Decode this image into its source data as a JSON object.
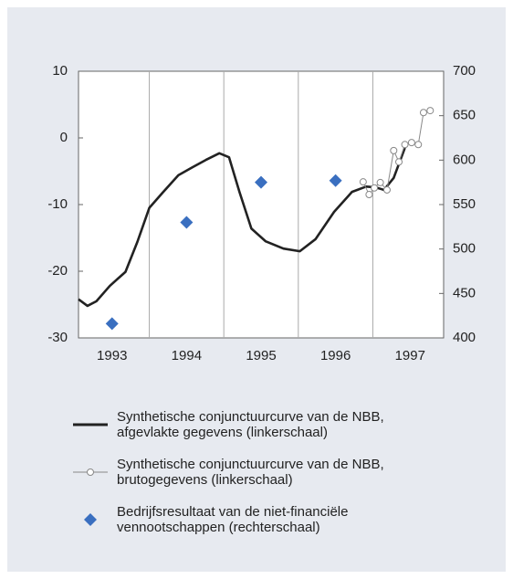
{
  "chart_data": {
    "type": "line",
    "xlim": [
      1993.05,
      1997.95
    ],
    "xticks": [
      {
        "value": 1993.5,
        "label": "1993"
      },
      {
        "value": 1994.5,
        "label": "1994"
      },
      {
        "value": 1995.5,
        "label": "1995"
      },
      {
        "value": 1996.5,
        "label": "1996"
      },
      {
        "value": 1997.5,
        "label": "1997"
      }
    ],
    "xgrid": [
      1994,
      1995,
      1996,
      1997
    ],
    "ylim": [
      -30,
      10
    ],
    "yticks": [
      10,
      0,
      -10,
      -20,
      -30
    ],
    "y2lim": [
      400,
      700
    ],
    "y2ticks": [
      700,
      650,
      600,
      550,
      500,
      450,
      400
    ],
    "series": [
      {
        "name": "Synthetische conjunctuurcurve van de NBB,\nafgevlakte gegevens (linkerschaal)",
        "color": "#222222",
        "style": "thick",
        "x": [
          1993.05,
          1993.17,
          1993.29,
          1993.47,
          1993.68,
          1993.84,
          1994.0,
          1994.18,
          1994.39,
          1994.58,
          1994.76,
          1994.94,
          1995.07,
          1995.21,
          1995.37,
          1995.56,
          1995.8,
          1996.02,
          1996.23,
          1996.48,
          1996.72,
          1996.91,
          1997.03,
          1997.15,
          1997.28,
          1997.43
        ],
        "values": [
          -24.2,
          -25.2,
          -24.5,
          -22.2,
          -20.1,
          -15.6,
          -10.5,
          -8.2,
          -5.6,
          -4.4,
          -3.3,
          -2.3,
          -2.9,
          -8.1,
          -13.6,
          -15.5,
          -16.6,
          -17.0,
          -15.2,
          -11.1,
          -8.1,
          -7.3,
          -7.4,
          -7.8,
          -6.0,
          -1.5
        ]
      },
      {
        "name": "Synthetische conjunctuurcurve van de NBB,\nbrutogegevens (linkerschaal)",
        "color": "#888888",
        "style": "thin-circles",
        "x": [
          1996.87,
          1996.95,
          1997.02,
          1997.1,
          1997.19,
          1997.28,
          1997.35,
          1997.43,
          1997.52,
          1997.61,
          1997.68,
          1997.77
        ],
        "values": [
          -6.6,
          -8.5,
          -7.5,
          -6.7,
          -7.8,
          -1.9,
          -3.6,
          -1.0,
          -0.7,
          -1.0,
          3.8,
          4.1
        ]
      },
      {
        "name": "Bedrijfsresultaat van de niet-financiële\nvennootschappen (rechterschaal)",
        "color": "#3a6fc0",
        "style": "diamonds",
        "axis": "y2",
        "x": [
          1993.5,
          1994.5,
          1995.5,
          1996.5
        ],
        "values": [
          416,
          530,
          575,
          577
        ]
      }
    ]
  }
}
